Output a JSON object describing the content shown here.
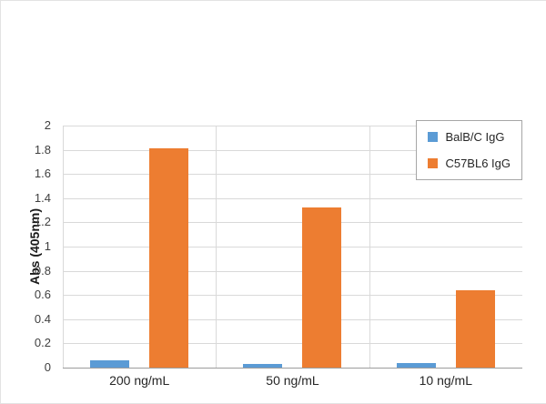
{
  "chart_data": {
    "type": "bar",
    "title": "",
    "categories": [
      "200 ng/mL",
      "50 ng/mL",
      "10 ng/mL"
    ],
    "series": [
      {
        "name": "BalB/C IgG",
        "color": "#5b9bd5",
        "values": [
          0.06,
          0.03,
          0.04
        ]
      },
      {
        "name": "C57BL6 IgG",
        "color": "#ed7d31",
        "values": [
          1.81,
          1.32,
          0.64
        ]
      }
    ],
    "xlabel": "",
    "ylabel": "Abs (405nm)",
    "ylim": [
      0,
      2
    ],
    "ytick_step": 0.2,
    "grid": "horizontal",
    "legend_position": "top-right",
    "colors": {
      "gridline": "#d9d9d9",
      "axis_line": "#9c9c9c",
      "tick_text": "#3f3f3f",
      "label_text": "#262626"
    }
  }
}
